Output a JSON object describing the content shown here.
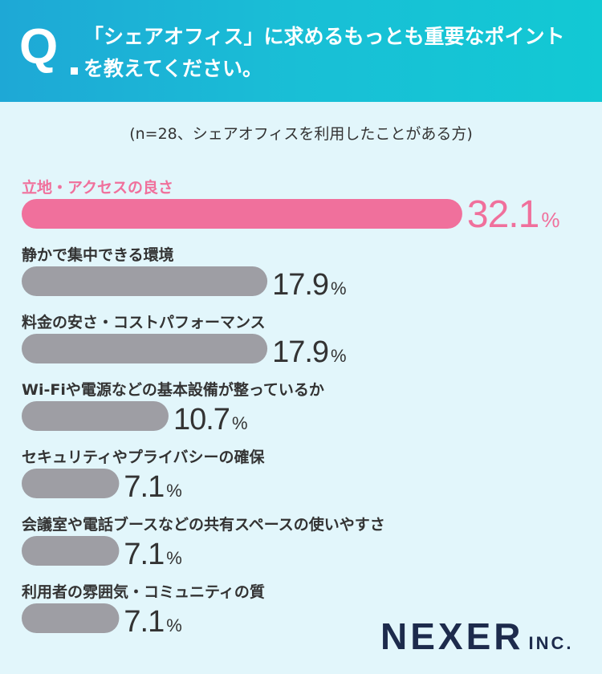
{
  "question": {
    "mark": "Q",
    "line1": "「シェアオフィス」に求めるもっとも重要なポイント",
    "line2": "を教えてください。"
  },
  "subtitle": "(n=28、シェアオフィスを利用したことがある方)",
  "chart_data": {
    "type": "bar",
    "orientation": "horizontal",
    "unit": "%",
    "categories": [
      "立地・アクセスの良さ",
      "静かで集中できる環境",
      "料金の安さ・コストパフォーマンス",
      "Wi-Fiや電源などの基本設備が整っているか",
      "セキュリティやプライバシーの確保",
      "会議室や電話ブースなどの共有スペースの使いやすさ",
      "利用者の雰囲気・コミュニティの質"
    ],
    "values": [
      32.1,
      17.9,
      17.9,
      10.7,
      7.1,
      7.1,
      7.1
    ],
    "value_labels": [
      "32.1",
      "17.9",
      "17.9",
      "10.7",
      "7.1",
      "7.1",
      "7.1"
    ],
    "highlight_index": 0,
    "colors": {
      "highlight": "#f0709c",
      "default": "#9e9ea4"
    }
  },
  "logo": {
    "main": "NEXER",
    "sub": "INC."
  }
}
